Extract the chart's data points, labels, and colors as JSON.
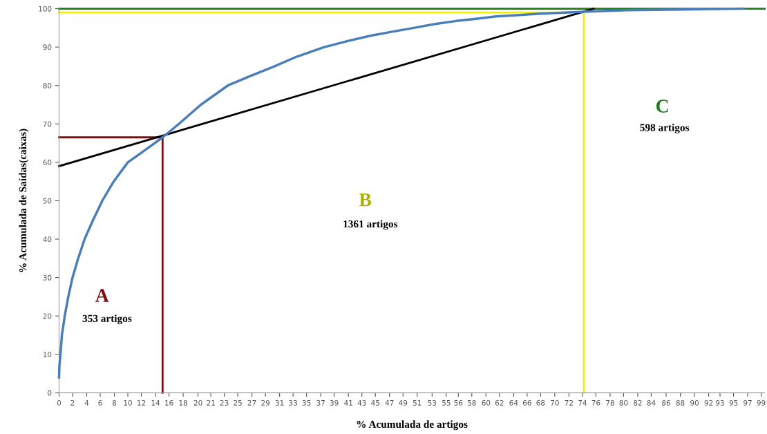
{
  "chart_data": {
    "type": "line",
    "xlabel": "% Acumulada de artigos",
    "ylabel": "% Acumulada de Saídas(caixas)",
    "series": [
      {
        "color": "#4a7ebb",
        "x": [
          0,
          0.05,
          0.2,
          0.4,
          0.8,
          1.3,
          1.9,
          2.7,
          3.6,
          4.8,
          6.1,
          7.7,
          9.7,
          12,
          14.6,
          16.9,
          20,
          23.8,
          27,
          30.4,
          33.5,
          37.4,
          41,
          44,
          47,
          50,
          53,
          56,
          59,
          61.6,
          64.5,
          68,
          74,
          80,
          88,
          96.5
        ],
        "values": [
          4,
          7,
          10,
          15,
          20,
          25,
          30,
          35,
          40,
          45,
          50,
          55,
          60,
          63,
          66.5,
          70,
          75,
          80,
          82.5,
          85,
          87.5,
          90,
          91.7,
          93,
          94,
          95,
          96,
          96.8,
          97.4,
          98,
          98.3,
          98.7,
          99.2,
          99.6,
          99.8,
          100
        ]
      },
      {
        "color": "#7f0f0f",
        "x": [
          0,
          14.6,
          14.6
        ],
        "values": [
          66.5,
          66.5,
          0
        ]
      },
      {
        "color": "#f2f200",
        "x": [
          0,
          74,
          74
        ],
        "values": [
          99,
          99,
          0
        ]
      },
      {
        "color": "#1a7f1a",
        "x": [
          0,
          99.5
        ],
        "values": [
          100,
          100
        ]
      },
      {
        "color": "#000000",
        "x": [
          0,
          75.4
        ],
        "values": [
          59,
          100
        ]
      }
    ],
    "annotations": [
      "A",
      "353 artigos",
      "B",
      "1361 artigos",
      "C",
      "598 artigos"
    ],
    "xlim": [
      0,
      99.5
    ],
    "ylim": [
      0,
      100
    ],
    "xticks": [
      {
        "value": 0,
        "label": "0"
      },
      {
        "value": 1.9,
        "label": "2"
      },
      {
        "value": 3.9,
        "label": "4"
      },
      {
        "value": 5.8,
        "label": "6"
      },
      {
        "value": 7.8,
        "label": "8"
      },
      {
        "value": 9.7,
        "label": "10"
      },
      {
        "value": 11.6,
        "label": "12"
      },
      {
        "value": 13.6,
        "label": "14"
      },
      {
        "value": 15.5,
        "label": "16"
      },
      {
        "value": 17.5,
        "label": "18"
      },
      {
        "value": 19.6,
        "label": "20"
      },
      {
        "value": 21.4,
        "label": "21"
      },
      {
        "value": 23.3,
        "label": "23"
      },
      {
        "value": 25.2,
        "label": "25"
      },
      {
        "value": 27.2,
        "label": "27"
      },
      {
        "value": 29.1,
        "label": "29"
      },
      {
        "value": 31.1,
        "label": "31"
      },
      {
        "value": 33.0,
        "label": "33"
      },
      {
        "value": 34.9,
        "label": "35"
      },
      {
        "value": 36.9,
        "label": "37"
      },
      {
        "value": 38.8,
        "label": "39"
      },
      {
        "value": 40.8,
        "label": "41"
      },
      {
        "value": 42.7,
        "label": "43"
      },
      {
        "value": 44.6,
        "label": "45"
      },
      {
        "value": 46.6,
        "label": "47"
      },
      {
        "value": 48.5,
        "label": "49"
      },
      {
        "value": 50.5,
        "label": "51"
      },
      {
        "value": 52.6,
        "label": "53"
      },
      {
        "value": 54.6,
        "label": "55"
      },
      {
        "value": 56.3,
        "label": "56"
      },
      {
        "value": 58.2,
        "label": "58"
      },
      {
        "value": 60.2,
        "label": "60"
      },
      {
        "value": 62.1,
        "label": "62"
      },
      {
        "value": 64.1,
        "label": "64"
      },
      {
        "value": 66.0,
        "label": "66"
      },
      {
        "value": 67.9,
        "label": "68"
      },
      {
        "value": 69.9,
        "label": "70"
      },
      {
        "value": 71.9,
        "label": "72"
      },
      {
        "value": 73.8,
        "label": "74"
      },
      {
        "value": 75.7,
        "label": "76"
      },
      {
        "value": 77.7,
        "label": "78"
      },
      {
        "value": 79.6,
        "label": "80"
      },
      {
        "value": 81.6,
        "label": "82"
      },
      {
        "value": 83.5,
        "label": "84"
      },
      {
        "value": 85.6,
        "label": "86"
      },
      {
        "value": 87.6,
        "label": "88"
      },
      {
        "value": 89.6,
        "label": "90"
      },
      {
        "value": 91.6,
        "label": "92"
      },
      {
        "value": 93.2,
        "label": "93"
      },
      {
        "value": 95.1,
        "label": "95"
      },
      {
        "value": 97.1,
        "label": "97"
      },
      {
        "value": 99.0,
        "label": "99"
      }
    ],
    "yticks": [
      0,
      10,
      20,
      30,
      40,
      50,
      60,
      70,
      80,
      90,
      100
    ],
    "grid": false,
    "legend": false,
    "marker": "none",
    "line_style": "solid"
  }
}
